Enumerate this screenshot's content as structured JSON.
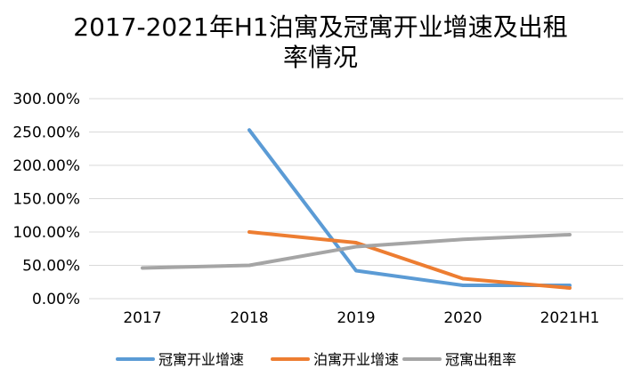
{
  "chart_data": {
    "type": "line",
    "title_line1": "2017-2021年H1泊寓及冠寓开业增速及出租",
    "title_line2": "率情况",
    "categories": [
      "2017",
      "2018",
      "2019",
      "2020",
      "2021H1"
    ],
    "y_ticks": [
      "300.00%",
      "250.00%",
      "200.00%",
      "150.00%",
      "100.00%",
      "50.00%",
      "0.00%"
    ],
    "ylim": [
      0,
      300
    ],
    "grid": true,
    "legend_position": "bottom",
    "series": [
      {
        "name": "冠寓开业增速",
        "color": "#5B9BD5",
        "values": [
          null,
          253,
          42,
          20,
          20
        ]
      },
      {
        "name": "泊寓开业增速",
        "color": "#ED7D31",
        "values": [
          null,
          100,
          84,
          30,
          16
        ]
      },
      {
        "name": "冠寓出租率",
        "color": "#A5A5A5",
        "values": [
          46,
          50,
          78,
          89,
          96
        ]
      }
    ]
  }
}
